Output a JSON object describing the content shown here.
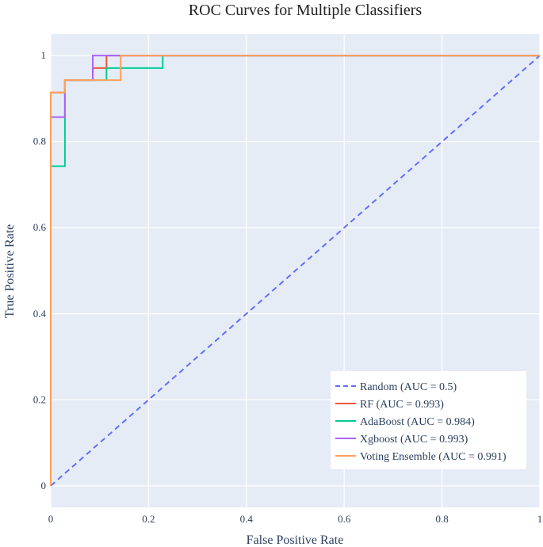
{
  "chart_data": {
    "type": "line",
    "title": "ROC Curves for Multiple Classifiers",
    "xlabel": "False Positive Rate",
    "ylabel": "True Positive Rate",
    "xlim": [
      0,
      1
    ],
    "ylim": [
      -0.05,
      1.05
    ],
    "xticks": [
      {
        "value": 0,
        "label": "0"
      },
      {
        "value": 0.2,
        "label": "0.2"
      },
      {
        "value": 0.4,
        "label": "0.4"
      },
      {
        "value": 0.6,
        "label": "0.6"
      },
      {
        "value": 0.8,
        "label": "0.8"
      },
      {
        "value": 1,
        "label": "1"
      }
    ],
    "yticks": [
      {
        "value": 0,
        "label": "0"
      },
      {
        "value": 0.2,
        "label": "0.2"
      },
      {
        "value": 0.4,
        "label": "0.4"
      },
      {
        "value": 0.6,
        "label": "0.6"
      },
      {
        "value": 0.8,
        "label": "0.8"
      },
      {
        "value": 1,
        "label": "1"
      }
    ],
    "grid": true,
    "legend_position": "bottom-right",
    "plot_background": "#e5ecf6",
    "series": [
      {
        "name": "Random (AUC = 0.5)",
        "color": "#636efa",
        "dash": true,
        "x": [
          0,
          1
        ],
        "y": [
          0,
          1
        ]
      },
      {
        "name": "RF (AUC = 0.993)",
        "color": "#ef553b",
        "dash": false,
        "x": [
          0,
          0,
          0.029,
          0.029,
          0.086,
          0.086,
          0.114,
          0.114,
          1
        ],
        "y": [
          0,
          0.914,
          0.914,
          0.943,
          0.943,
          0.971,
          0.971,
          1,
          1
        ]
      },
      {
        "name": "AdaBoost (AUC = 0.984)",
        "color": "#00cc96",
        "dash": false,
        "x": [
          0,
          0,
          0.029,
          0.029,
          0.114,
          0.114,
          0.229,
          0.229,
          1
        ],
        "y": [
          0,
          0.743,
          0.743,
          0.943,
          0.943,
          0.971,
          0.971,
          1,
          1
        ]
      },
      {
        "name": "Xgboost (AUC = 0.993)",
        "color": "#ab63fa",
        "dash": false,
        "x": [
          0,
          0,
          0.029,
          0.029,
          0.086,
          0.086,
          1
        ],
        "y": [
          0,
          0.857,
          0.857,
          0.943,
          0.943,
          1,
          1
        ]
      },
      {
        "name": "Voting Ensemble (AUC = 0.991)",
        "color": "#ffa15a",
        "dash": false,
        "x": [
          0,
          0,
          0.029,
          0.029,
          0.143,
          0.143,
          1
        ],
        "y": [
          0,
          0.914,
          0.914,
          0.943,
          0.943,
          1,
          1
        ]
      }
    ]
  }
}
